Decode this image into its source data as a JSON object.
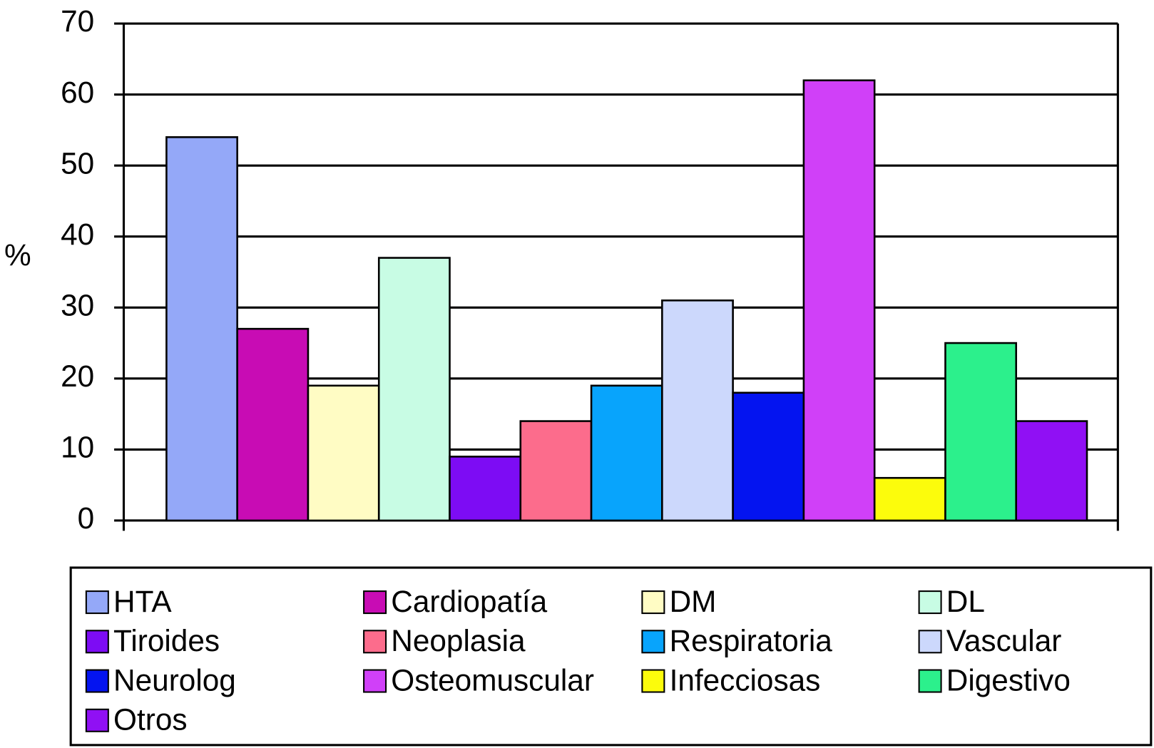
{
  "chart_data": {
    "type": "bar",
    "y_label": "%",
    "categories": [
      null
    ],
    "series": [
      {
        "name": "HTA",
        "color": "#94a8f8",
        "values": [
          54
        ]
      },
      {
        "name": "Cardiopatía",
        "color": "#c80cb4",
        "values": [
          27
        ]
      },
      {
        "name": "DM",
        "color": "#fffcc4",
        "values": [
          19
        ]
      },
      {
        "name": "DL",
        "color": "#c8fce4",
        "values": [
          37
        ]
      },
      {
        "name": "Tiroides",
        "color": "#7d0cf4",
        "values": [
          9
        ]
      },
      {
        "name": "Neoplasia",
        "color": "#fc6c8c",
        "values": [
          14
        ]
      },
      {
        "name": "Respiratoria",
        "color": "#08a4fc",
        "values": [
          19
        ]
      },
      {
        "name": "Vascular",
        "color": "#ccd8fc",
        "values": [
          31
        ]
      },
      {
        "name": "Neurolog",
        "color": "#0414f0",
        "values": [
          18
        ]
      },
      {
        "name": "Osteomuscular",
        "color": "#d040f8",
        "values": [
          62
        ]
      },
      {
        "name": "Infecciosas",
        "color": "#fcfc0c",
        "values": [
          6
        ]
      },
      {
        "name": "Digestivo",
        "color": "#2cf08c",
        "values": [
          25
        ]
      },
      {
        "name": "Otros",
        "color": "#9010f4",
        "values": [
          14
        ]
      }
    ],
    "ylim": [
      0,
      70
    ],
    "yticks": [
      0,
      10,
      20,
      30,
      40,
      50,
      60,
      70
    ],
    "grid": true,
    "legend": "bottom"
  }
}
